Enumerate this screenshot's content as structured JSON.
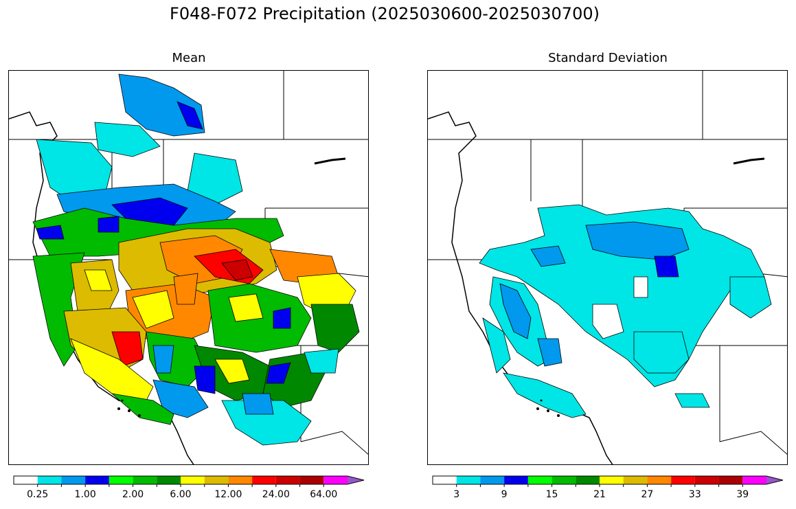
{
  "title": "F048-F072 Precipitation (2025030600-2025030700)",
  "panels": [
    {
      "title": "Mean",
      "colorbar": {
        "colors": [
          "#ffffff",
          "#00e5e5",
          "#0099ee",
          "#0000ee",
          "#00ff00",
          "#00bb00",
          "#008800",
          "#ffff00",
          "#ddbb00",
          "#ff8800",
          "#ff0000",
          "#cc0000",
          "#aa0000",
          "#ff00ff",
          "#9955cc"
        ],
        "tick_labels": [
          "0.25",
          "1.00",
          "2.00",
          "6.00",
          "12.00",
          "24.00",
          "64.00"
        ],
        "extend": "max"
      }
    },
    {
      "title": "Standard Deviation",
      "colorbar": {
        "colors": [
          "#ffffff",
          "#00e5e5",
          "#0099ee",
          "#0000ee",
          "#00ff00",
          "#00bb00",
          "#008800",
          "#ffff00",
          "#ddbb00",
          "#ff8800",
          "#ff0000",
          "#cc0000",
          "#aa0000",
          "#ff00ff",
          "#9955cc"
        ],
        "tick_labels": [
          "3",
          "9",
          "15",
          "21",
          "27",
          "33",
          "39"
        ],
        "extend": "max"
      }
    }
  ]
}
